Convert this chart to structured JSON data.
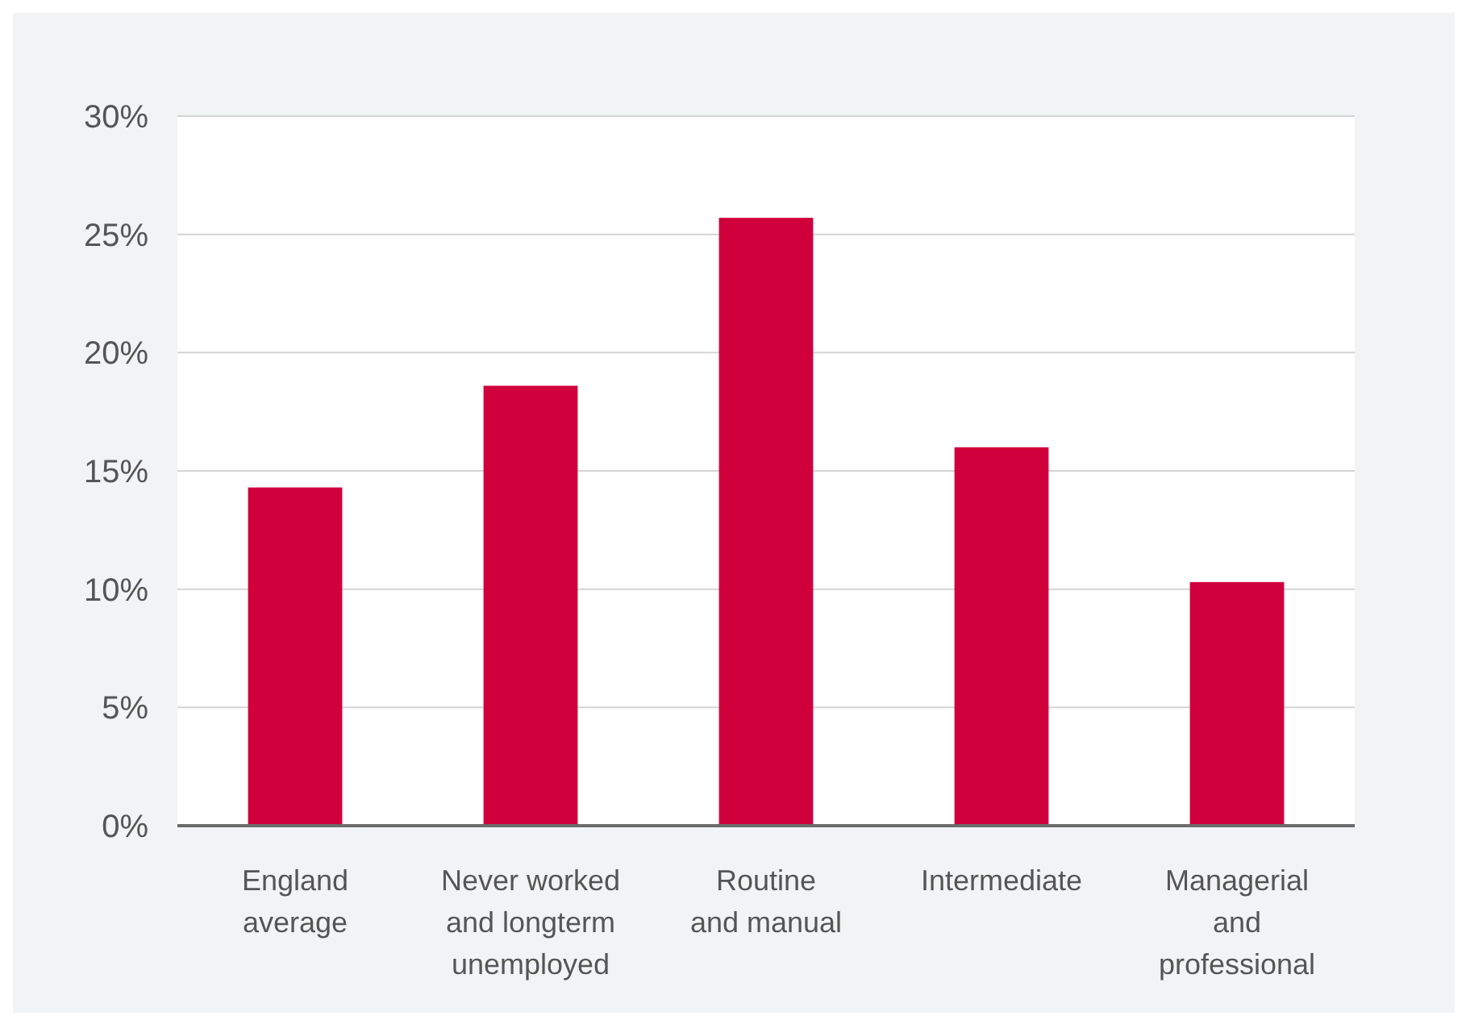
{
  "chart_data": {
    "type": "bar",
    "categories": [
      "England\naverage",
      "Never worked\nand longterm\nunemployed",
      "Routine\nand manual",
      "Intermediate",
      "Managerial\nand\nprofessional"
    ],
    "values": [
      14.3,
      18.6,
      25.7,
      16.0,
      10.3
    ],
    "color": "#d0003c",
    "ylim": [
      0,
      30
    ],
    "yticks": [
      {
        "value": 0,
        "label": "0%"
      },
      {
        "value": 5,
        "label": "5%"
      },
      {
        "value": 10,
        "label": "10%"
      },
      {
        "value": 15,
        "label": "15%"
      },
      {
        "value": 20,
        "label": "20%"
      },
      {
        "value": 25,
        "label": "25%"
      },
      {
        "value": 30,
        "label": "30%"
      }
    ],
    "grid": "y"
  }
}
